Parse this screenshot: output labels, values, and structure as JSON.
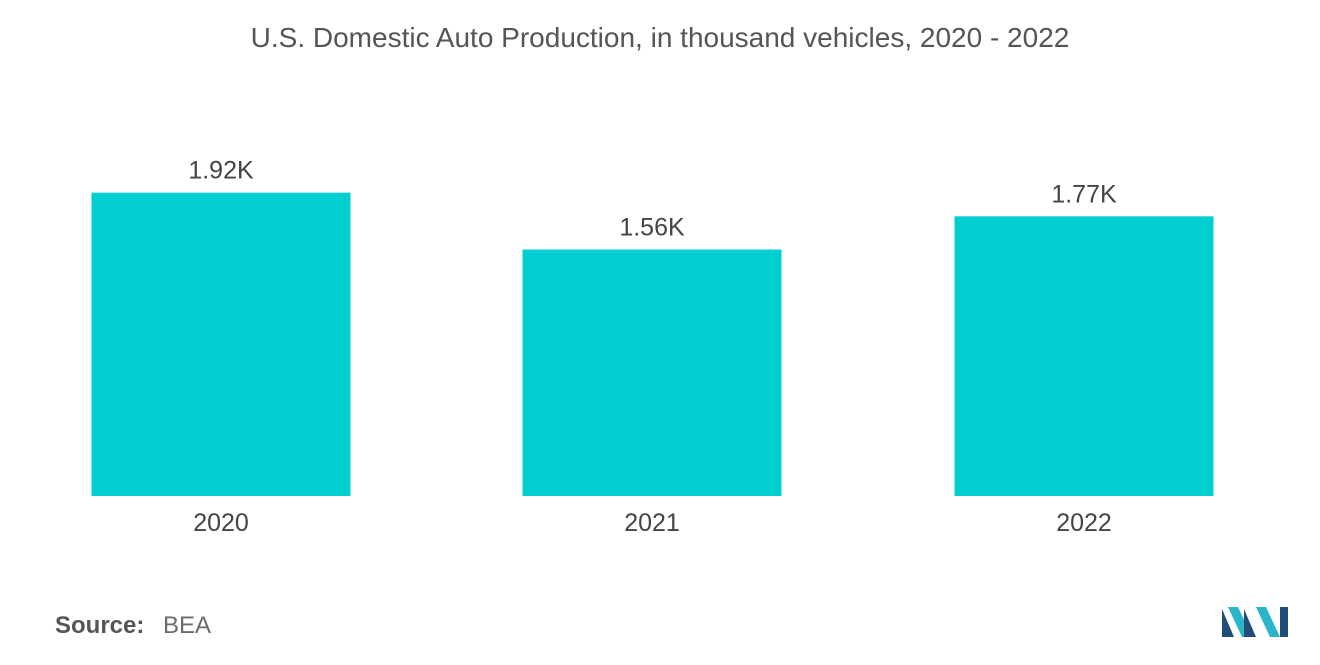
{
  "chart_data": {
    "type": "bar",
    "title": "U.S. Domestic Auto Production, in thousand vehicles, 2020 - 2022",
    "categories": [
      "2020",
      "2021",
      "2022"
    ],
    "values": [
      1920,
      1560,
      1770
    ],
    "data_labels": [
      "1.92K",
      "1.56K",
      "1.77K"
    ],
    "xlabel": "",
    "ylabel": "",
    "ylim": [
      0,
      2000
    ],
    "grid": false,
    "legend": "none",
    "bar_color": "#00CED1"
  },
  "source": {
    "label": "Source:",
    "value": "BEA"
  },
  "logo": {
    "icon": "mordor-intelligence-logo-icon",
    "colors": [
      "#1f4e79",
      "#2bb5c8"
    ]
  }
}
